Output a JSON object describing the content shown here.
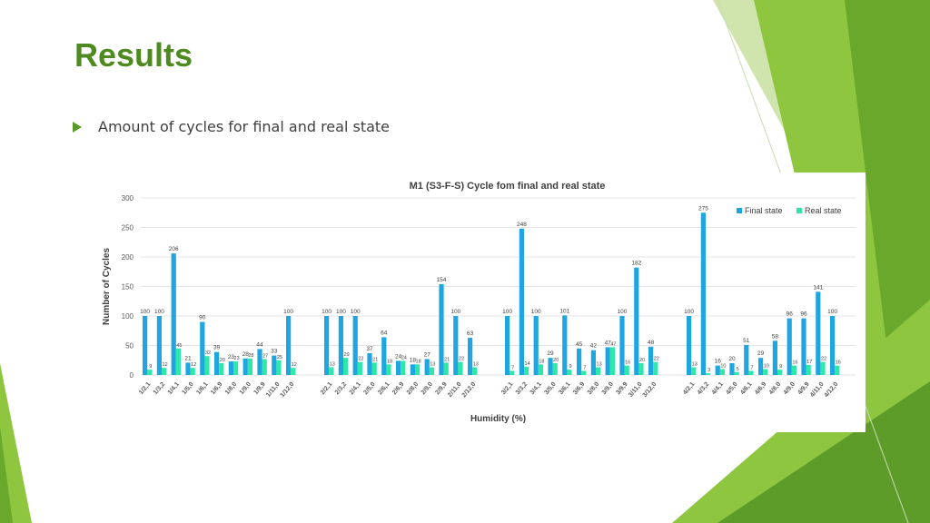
{
  "slide": {
    "title": "Results",
    "bullet": "Amount of cycles for final and real state"
  },
  "colors": {
    "title": "#4e8a1f",
    "final_state": "#1fa5e0",
    "real_state": "#2de8a8",
    "green_dark": "#6aa82b",
    "green_light": "#a6d33c"
  },
  "chart_data": {
    "type": "bar",
    "title": "M1 (S3-F-S) Cycle fom final and real state",
    "xlabel": "Humidity (%)",
    "ylabel": "Number of Cycles",
    "ylim": [
      0,
      300
    ],
    "yticks": [
      0,
      50,
      100,
      150,
      200,
      250,
      300
    ],
    "legend_position": "top-right",
    "groups": [
      {
        "categories": [
          "1/2,1",
          "1/3,2",
          "1/4,1",
          "1/5,0",
          "1/6,1",
          "1/6,9",
          "1/8,0",
          "1/9,0",
          "1/9,9",
          "1/11,0",
          "1/12,0"
        ],
        "final": [
          100,
          100,
          206,
          21,
          90,
          39,
          23,
          28,
          44,
          33,
          100
        ],
        "real": [
          9,
          12,
          45,
          12,
          32,
          20,
          23,
          28,
          27,
          25,
          12
        ]
      },
      {
        "categories": [
          "2/2,1",
          "2/3,2",
          "2/4,1",
          "2/5,0",
          "2/6,1",
          "2/6,9",
          "2/8,0",
          "2/9,0",
          "2/9,9",
          "2/11,0",
          "2/12,0"
        ],
        "final": [
          100,
          100,
          100,
          37,
          64,
          24,
          18,
          27,
          154,
          100,
          63
        ],
        "real": [
          13,
          29,
          22,
          21,
          18,
          24,
          18,
          13,
          21,
          22,
          13
        ]
      },
      {
        "categories": [
          "3/2,1",
          "3/3,2",
          "3/4,1",
          "3/5,0",
          "3/6,1",
          "3/6,9",
          "3/8,0",
          "3/9,0",
          "3/9,9",
          "3/11,0",
          "3/12,0"
        ],
        "final": [
          100,
          248,
          100,
          29,
          101,
          45,
          42,
          47,
          100,
          182,
          48
        ],
        "real": [
          7,
          14,
          18,
          20,
          9,
          7,
          13,
          47,
          16,
          20,
          22
        ]
      },
      {
        "categories": [
          "4/2,1",
          "4/3,2",
          "4/4,1",
          "4/5,0",
          "4/6,1",
          "4/6,9",
          "4/8,0",
          "4/9,0",
          "4/9,9",
          "4/11,0",
          "4/12,0"
        ],
        "final": [
          100,
          275,
          16,
          20,
          51,
          29,
          58,
          96,
          96,
          141,
          100
        ],
        "real": [
          13,
          3,
          10,
          5,
          7,
          10,
          9,
          16,
          17,
          22,
          16
        ]
      }
    ],
    "series": [
      {
        "name": "Final state",
        "key": "final",
        "color": "#1fa5e0"
      },
      {
        "name": "Real state",
        "key": "real",
        "color": "#2de8a8"
      }
    ]
  }
}
